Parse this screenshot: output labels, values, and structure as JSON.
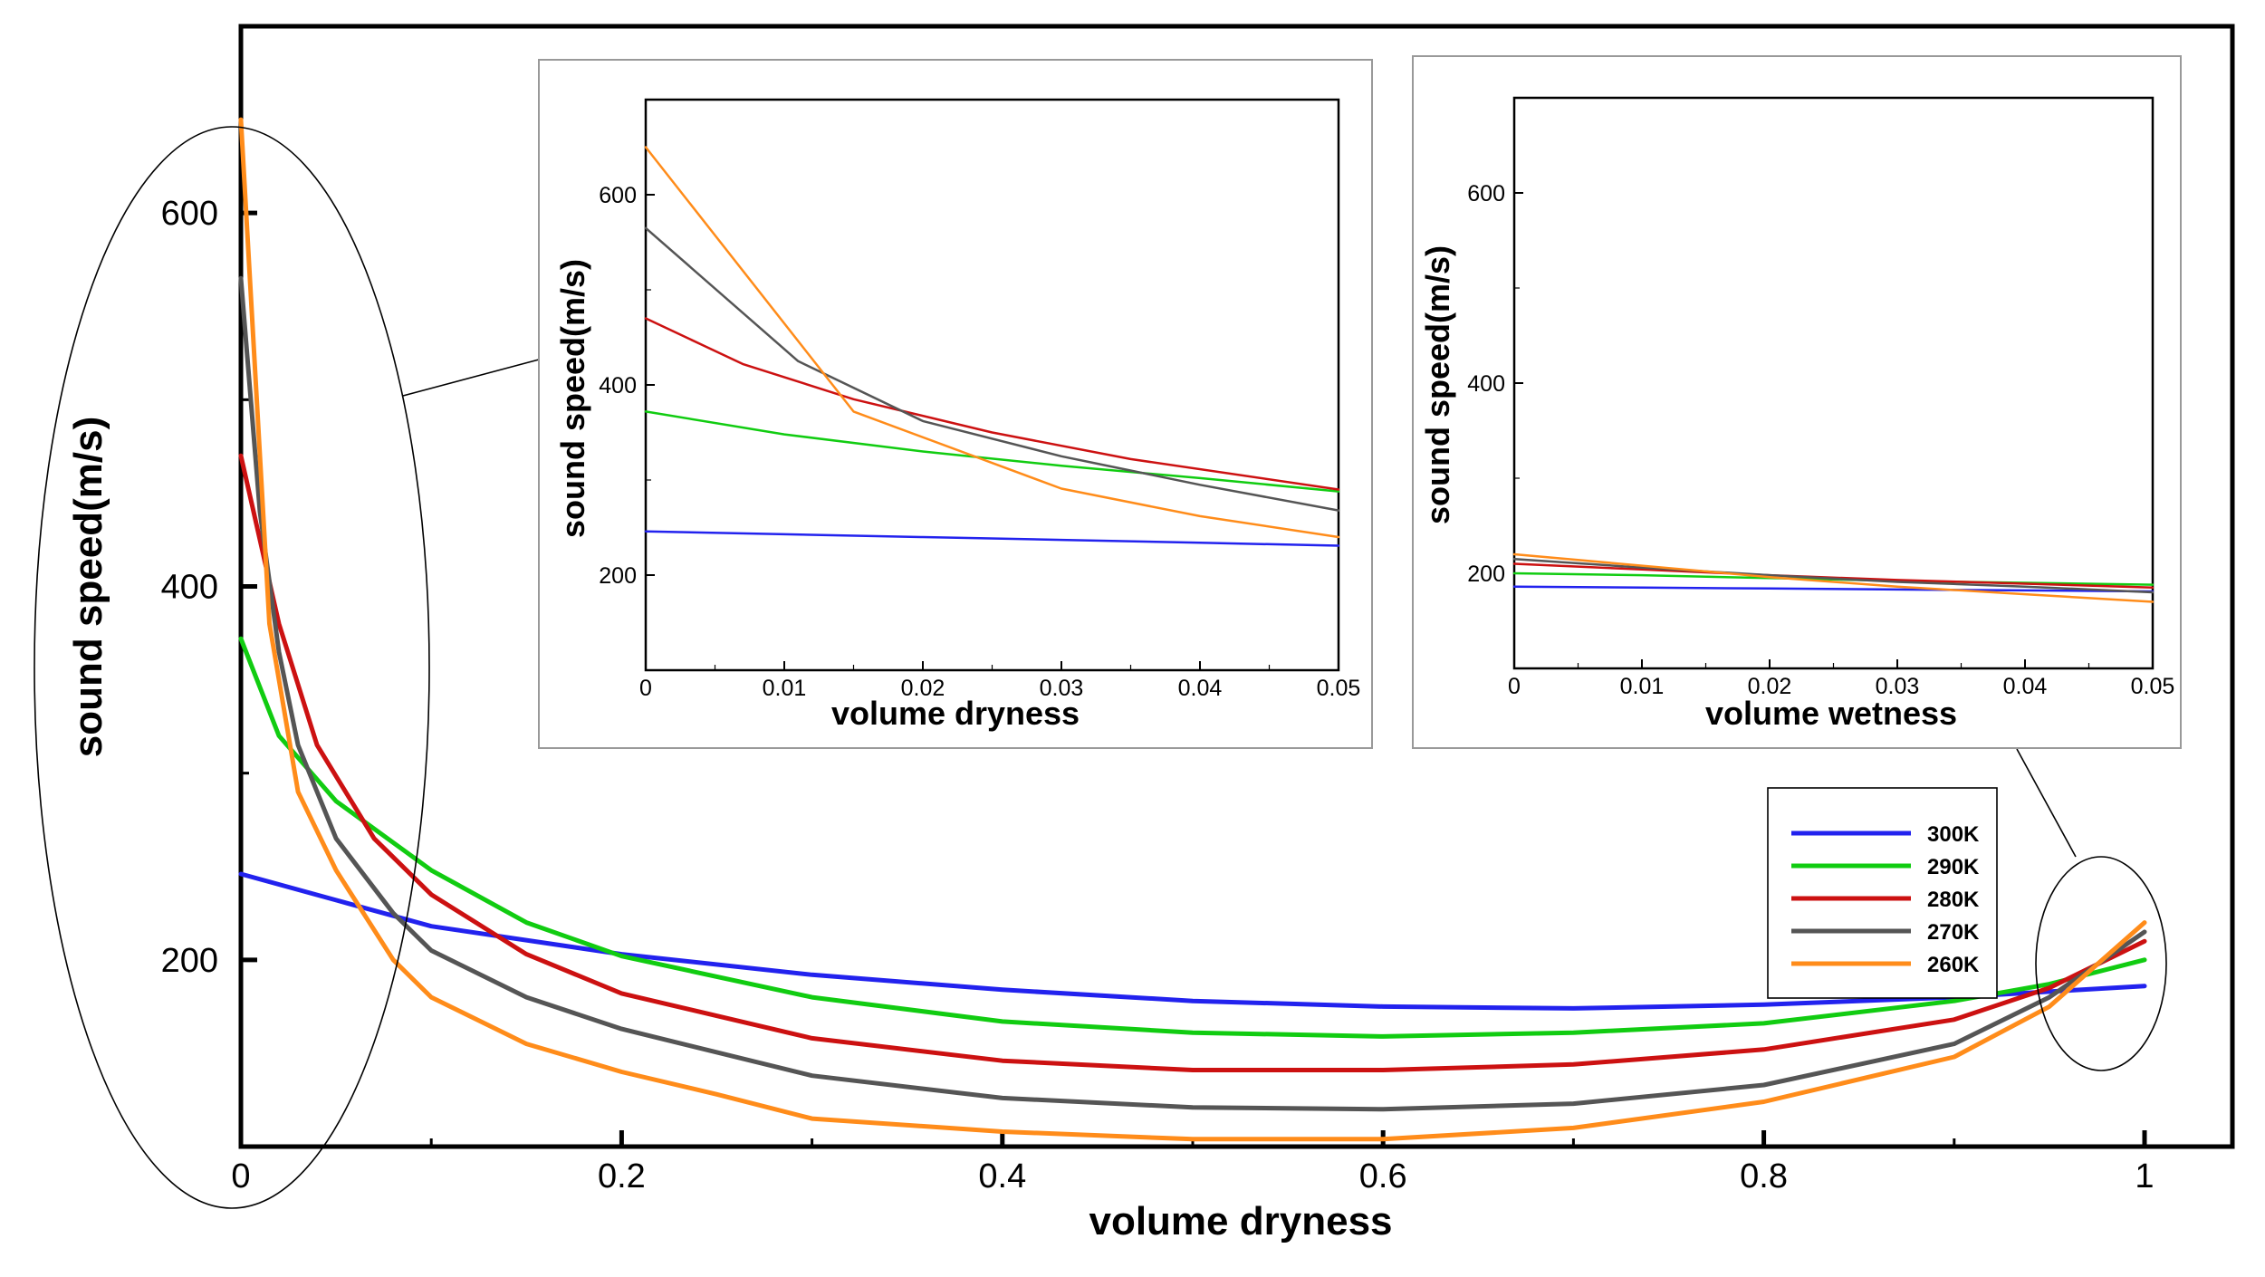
{
  "chart_data": [
    {
      "id": "main",
      "type": "line",
      "title": "",
      "xlabel": "volume dryness",
      "ylabel": "sound speed(m/s)",
      "xlim": [
        0,
        1.04
      ],
      "ylim": [
        100,
        700
      ],
      "xticks": [
        0,
        0.2,
        0.4,
        0.6,
        0.8,
        1
      ],
      "xtick_labels": [
        "0",
        "0.2",
        "0.4",
        "0.6",
        "0.8",
        "1"
      ],
      "yticks": [
        200,
        400,
        600
      ],
      "ytick_labels": [
        "200",
        "400",
        "600"
      ],
      "series": [
        {
          "name": "300K",
          "color": "#2222ee",
          "x": [
            0,
            0.05,
            0.1,
            0.2,
            0.3,
            0.4,
            0.5,
            0.6,
            0.7,
            0.8,
            0.9,
            0.95,
            1.0
          ],
          "y": [
            246,
            232,
            218,
            203,
            192,
            184,
            178,
            175,
            174,
            176,
            180,
            183,
            186
          ]
        },
        {
          "name": "290K",
          "color": "#11cc11",
          "x": [
            0,
            0.02,
            0.05,
            0.1,
            0.15,
            0.2,
            0.3,
            0.4,
            0.5,
            0.6,
            0.7,
            0.8,
            0.9,
            0.95,
            1.0
          ],
          "y": [
            372,
            320,
            285,
            248,
            220,
            202,
            180,
            167,
            161,
            159,
            161,
            166,
            178,
            187,
            200
          ]
        },
        {
          "name": "280K",
          "color": "#cc1111",
          "x": [
            0,
            0.02,
            0.04,
            0.07,
            0.1,
            0.15,
            0.2,
            0.3,
            0.4,
            0.5,
            0.6,
            0.7,
            0.8,
            0.9,
            0.95,
            1.0
          ],
          "y": [
            470,
            380,
            315,
            265,
            235,
            203,
            182,
            158,
            146,
            141,
            141,
            144,
            152,
            168,
            185,
            210
          ]
        },
        {
          "name": "270K",
          "color": "#555555",
          "x": [
            0,
            0.01,
            0.02,
            0.03,
            0.05,
            0.08,
            0.1,
            0.15,
            0.2,
            0.3,
            0.4,
            0.5,
            0.6,
            0.7,
            0.8,
            0.9,
            0.95,
            1.0
          ],
          "y": [
            565,
            440,
            365,
            315,
            265,
            225,
            205,
            180,
            163,
            138,
            126,
            121,
            120,
            123,
            133,
            155,
            180,
            215
          ]
        },
        {
          "name": "260K",
          "color": "#ff8c1a",
          "x": [
            0,
            0.01,
            0.015,
            0.03,
            0.05,
            0.08,
            0.1,
            0.15,
            0.2,
            0.25,
            0.3,
            0.4,
            0.5,
            0.6,
            0.7,
            0.8,
            0.9,
            0.95,
            1.0
          ],
          "y": [
            650,
            470,
            380,
            290,
            248,
            200,
            180,
            155,
            140,
            128,
            115,
            108,
            104,
            104,
            110,
            124,
            148,
            175,
            220
          ]
        }
      ],
      "legend": {
        "position": "lower-right",
        "entries": [
          "300K",
          "290K",
          "280K",
          "270K",
          "260K"
        ]
      }
    },
    {
      "id": "inset-dryness",
      "type": "line",
      "xlabel": "volume dryness",
      "ylabel": "sound speed(m/s)",
      "xlim": [
        0,
        0.05
      ],
      "ylim": [
        100,
        700
      ],
      "xticks": [
        0,
        0.01,
        0.02,
        0.03,
        0.04,
        0.05
      ],
      "xtick_labels": [
        "0",
        "0.01",
        "0.02",
        "0.03",
        "0.04",
        "0.05"
      ],
      "yticks": [
        200,
        400,
        600
      ],
      "ytick_labels": [
        "200",
        "400",
        "600"
      ],
      "series": [
        {
          "name": "300K",
          "color": "#2222ee",
          "x": [
            0,
            0.01,
            0.02,
            0.03,
            0.04,
            0.05
          ],
          "y": [
            246,
            243,
            240,
            237,
            234,
            231
          ]
        },
        {
          "name": "290K",
          "color": "#11cc11",
          "x": [
            0,
            0.01,
            0.02,
            0.03,
            0.04,
            0.05
          ],
          "y": [
            372,
            348,
            330,
            315,
            302,
            288
          ]
        },
        {
          "name": "280K",
          "color": "#cc1111",
          "x": [
            0,
            0.007,
            0.015,
            0.025,
            0.035,
            0.05
          ],
          "y": [
            470,
            422,
            385,
            350,
            322,
            290
          ]
        },
        {
          "name": "270K",
          "color": "#555555",
          "x": [
            0,
            0.011,
            0.02,
            0.03,
            0.04,
            0.05
          ],
          "y": [
            565,
            425,
            362,
            325,
            295,
            268
          ]
        },
        {
          "name": "260K",
          "color": "#ff8c1a",
          "x": [
            0,
            0.015,
            0.03,
            0.04,
            0.05
          ],
          "y": [
            650,
            372,
            291,
            262,
            240
          ]
        }
      ]
    },
    {
      "id": "inset-wetness",
      "type": "line",
      "xlabel": "volume wetness",
      "ylabel": "sound speed(m/s)",
      "xlim": [
        0,
        0.05
      ],
      "ylim": [
        100,
        700
      ],
      "xticks": [
        0,
        0.01,
        0.02,
        0.03,
        0.04,
        0.05
      ],
      "xtick_labels": [
        "0",
        "0.01",
        "0.02",
        "0.03",
        "0.04",
        "0.05"
      ],
      "yticks": [
        200,
        400,
        600
      ],
      "ytick_labels": [
        "200",
        "400",
        "600"
      ],
      "series": [
        {
          "name": "300K",
          "color": "#2222ee",
          "x": [
            0,
            0.01,
            0.02,
            0.03,
            0.04,
            0.05
          ],
          "y": [
            186,
            185,
            184,
            183,
            182,
            181
          ]
        },
        {
          "name": "290K",
          "color": "#11cc11",
          "x": [
            0,
            0.01,
            0.02,
            0.03,
            0.04,
            0.05
          ],
          "y": [
            200,
            198,
            195,
            192,
            190,
            188
          ]
        },
        {
          "name": "280K",
          "color": "#cc1111",
          "x": [
            0,
            0.01,
            0.02,
            0.03,
            0.04,
            0.05
          ],
          "y": [
            210,
            204,
            198,
            193,
            189,
            185
          ]
        },
        {
          "name": "270K",
          "color": "#555555",
          "x": [
            0,
            0.01,
            0.02,
            0.03,
            0.04,
            0.05
          ],
          "y": [
            215,
            206,
            198,
            191,
            186,
            180
          ]
        },
        {
          "name": "260K",
          "color": "#ff8c1a",
          "x": [
            0,
            0.01,
            0.02,
            0.03,
            0.04,
            0.05
          ],
          "y": [
            220,
            208,
            196,
            186,
            178,
            170
          ]
        }
      ]
    }
  ]
}
